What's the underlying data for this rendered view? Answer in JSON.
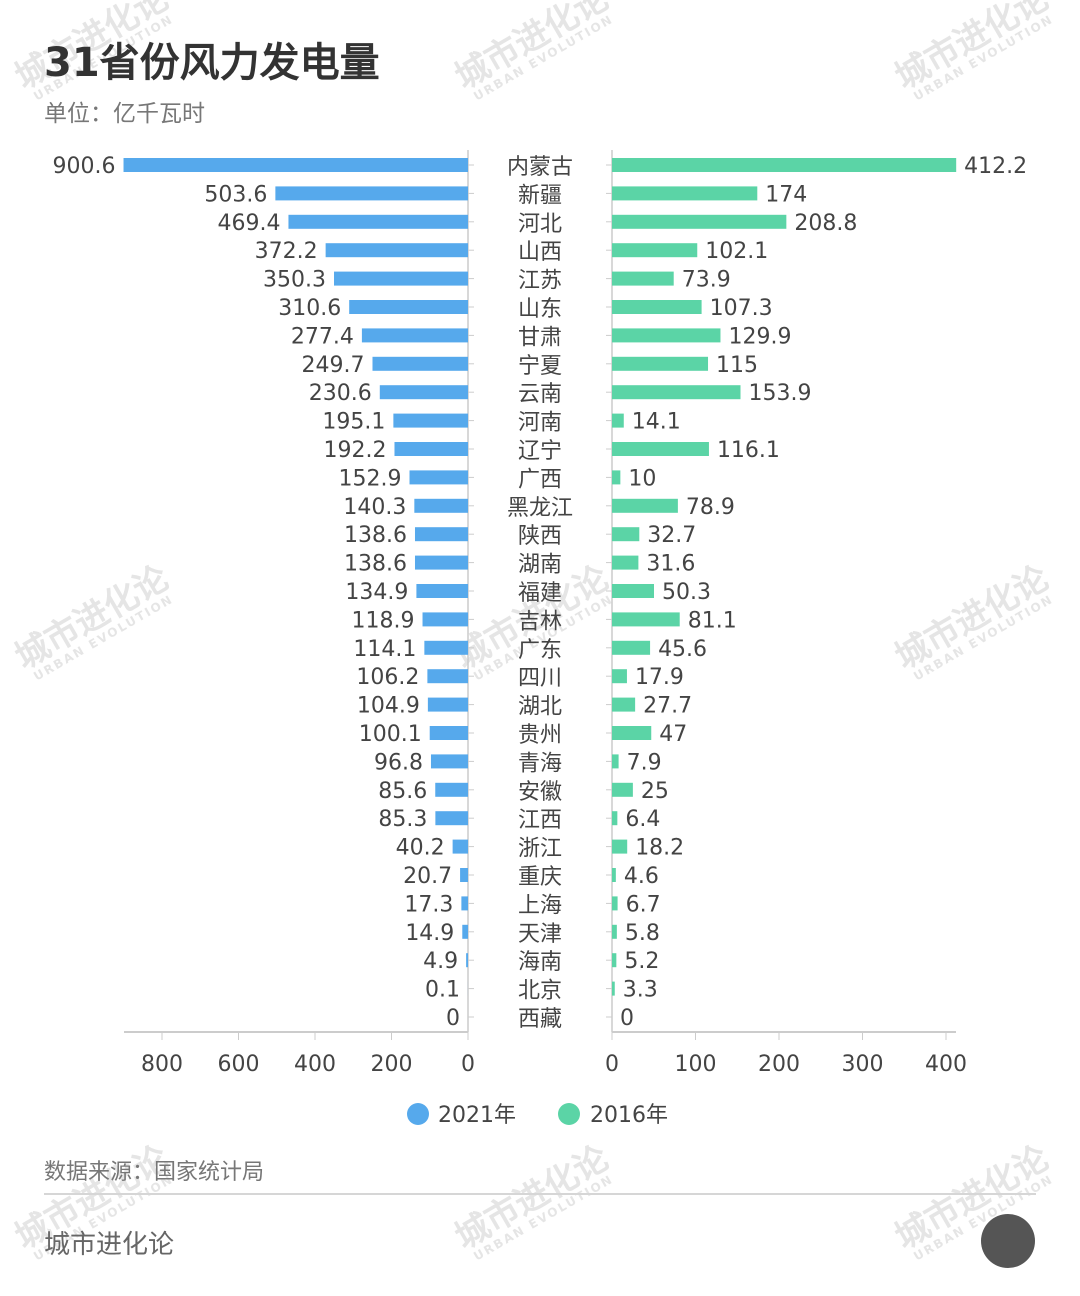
{
  "header": {
    "title": "31省份风力发电量",
    "unit": "单位：亿千瓦时"
  },
  "footer": {
    "source": "数据来源：国家统计局",
    "brand": "城市进化论",
    "logo": "UE"
  },
  "watermark": {
    "cn": "城市进化论",
    "en": "URBAN EVOLUTION"
  },
  "colors": {
    "2021": "#56a9ec",
    "2016": "#5bd4a6"
  },
  "chart_data": {
    "type": "bar",
    "orientation": "horizontal-butterfly",
    "categories": [
      "内蒙古",
      "新疆",
      "河北",
      "山西",
      "江苏",
      "山东",
      "甘肃",
      "宁夏",
      "云南",
      "河南",
      "辽宁",
      "广西",
      "黑龙江",
      "陕西",
      "湖南",
      "福建",
      "吉林",
      "广东",
      "四川",
      "湖北",
      "贵州",
      "青海",
      "安徽",
      "江西",
      "浙江",
      "重庆",
      "上海",
      "天津",
      "海南",
      "北京",
      "西藏"
    ],
    "series": [
      {
        "name": "2021年",
        "side": "left",
        "values": [
          900.6,
          503.6,
          469.4,
          372.2,
          350.3,
          310.6,
          277.4,
          249.7,
          230.6,
          195.1,
          192.2,
          152.9,
          140.3,
          138.6,
          138.6,
          134.9,
          118.9,
          114.1,
          106.2,
          104.9,
          100.1,
          96.8,
          85.6,
          85.3,
          40.2,
          20.7,
          17.3,
          14.9,
          4.9,
          0.1,
          0
        ],
        "ticks": [
          800,
          600,
          400,
          200,
          0
        ],
        "xlim": [
          0,
          900
        ]
      },
      {
        "name": "2016年",
        "side": "right",
        "values": [
          412.2,
          174,
          208.8,
          102.1,
          73.9,
          107.3,
          129.9,
          115,
          153.9,
          14.1,
          116.1,
          10,
          78.9,
          32.7,
          31.6,
          50.3,
          81.1,
          45.6,
          17.9,
          27.7,
          47,
          7.9,
          25,
          6.4,
          18.2,
          4.6,
          6.7,
          5.8,
          5.2,
          3.3,
          0
        ],
        "ticks": [
          0,
          100,
          200,
          300,
          400
        ],
        "xlim": [
          0,
          412
        ]
      }
    ],
    "legend": "bottom-center",
    "grid": false
  }
}
